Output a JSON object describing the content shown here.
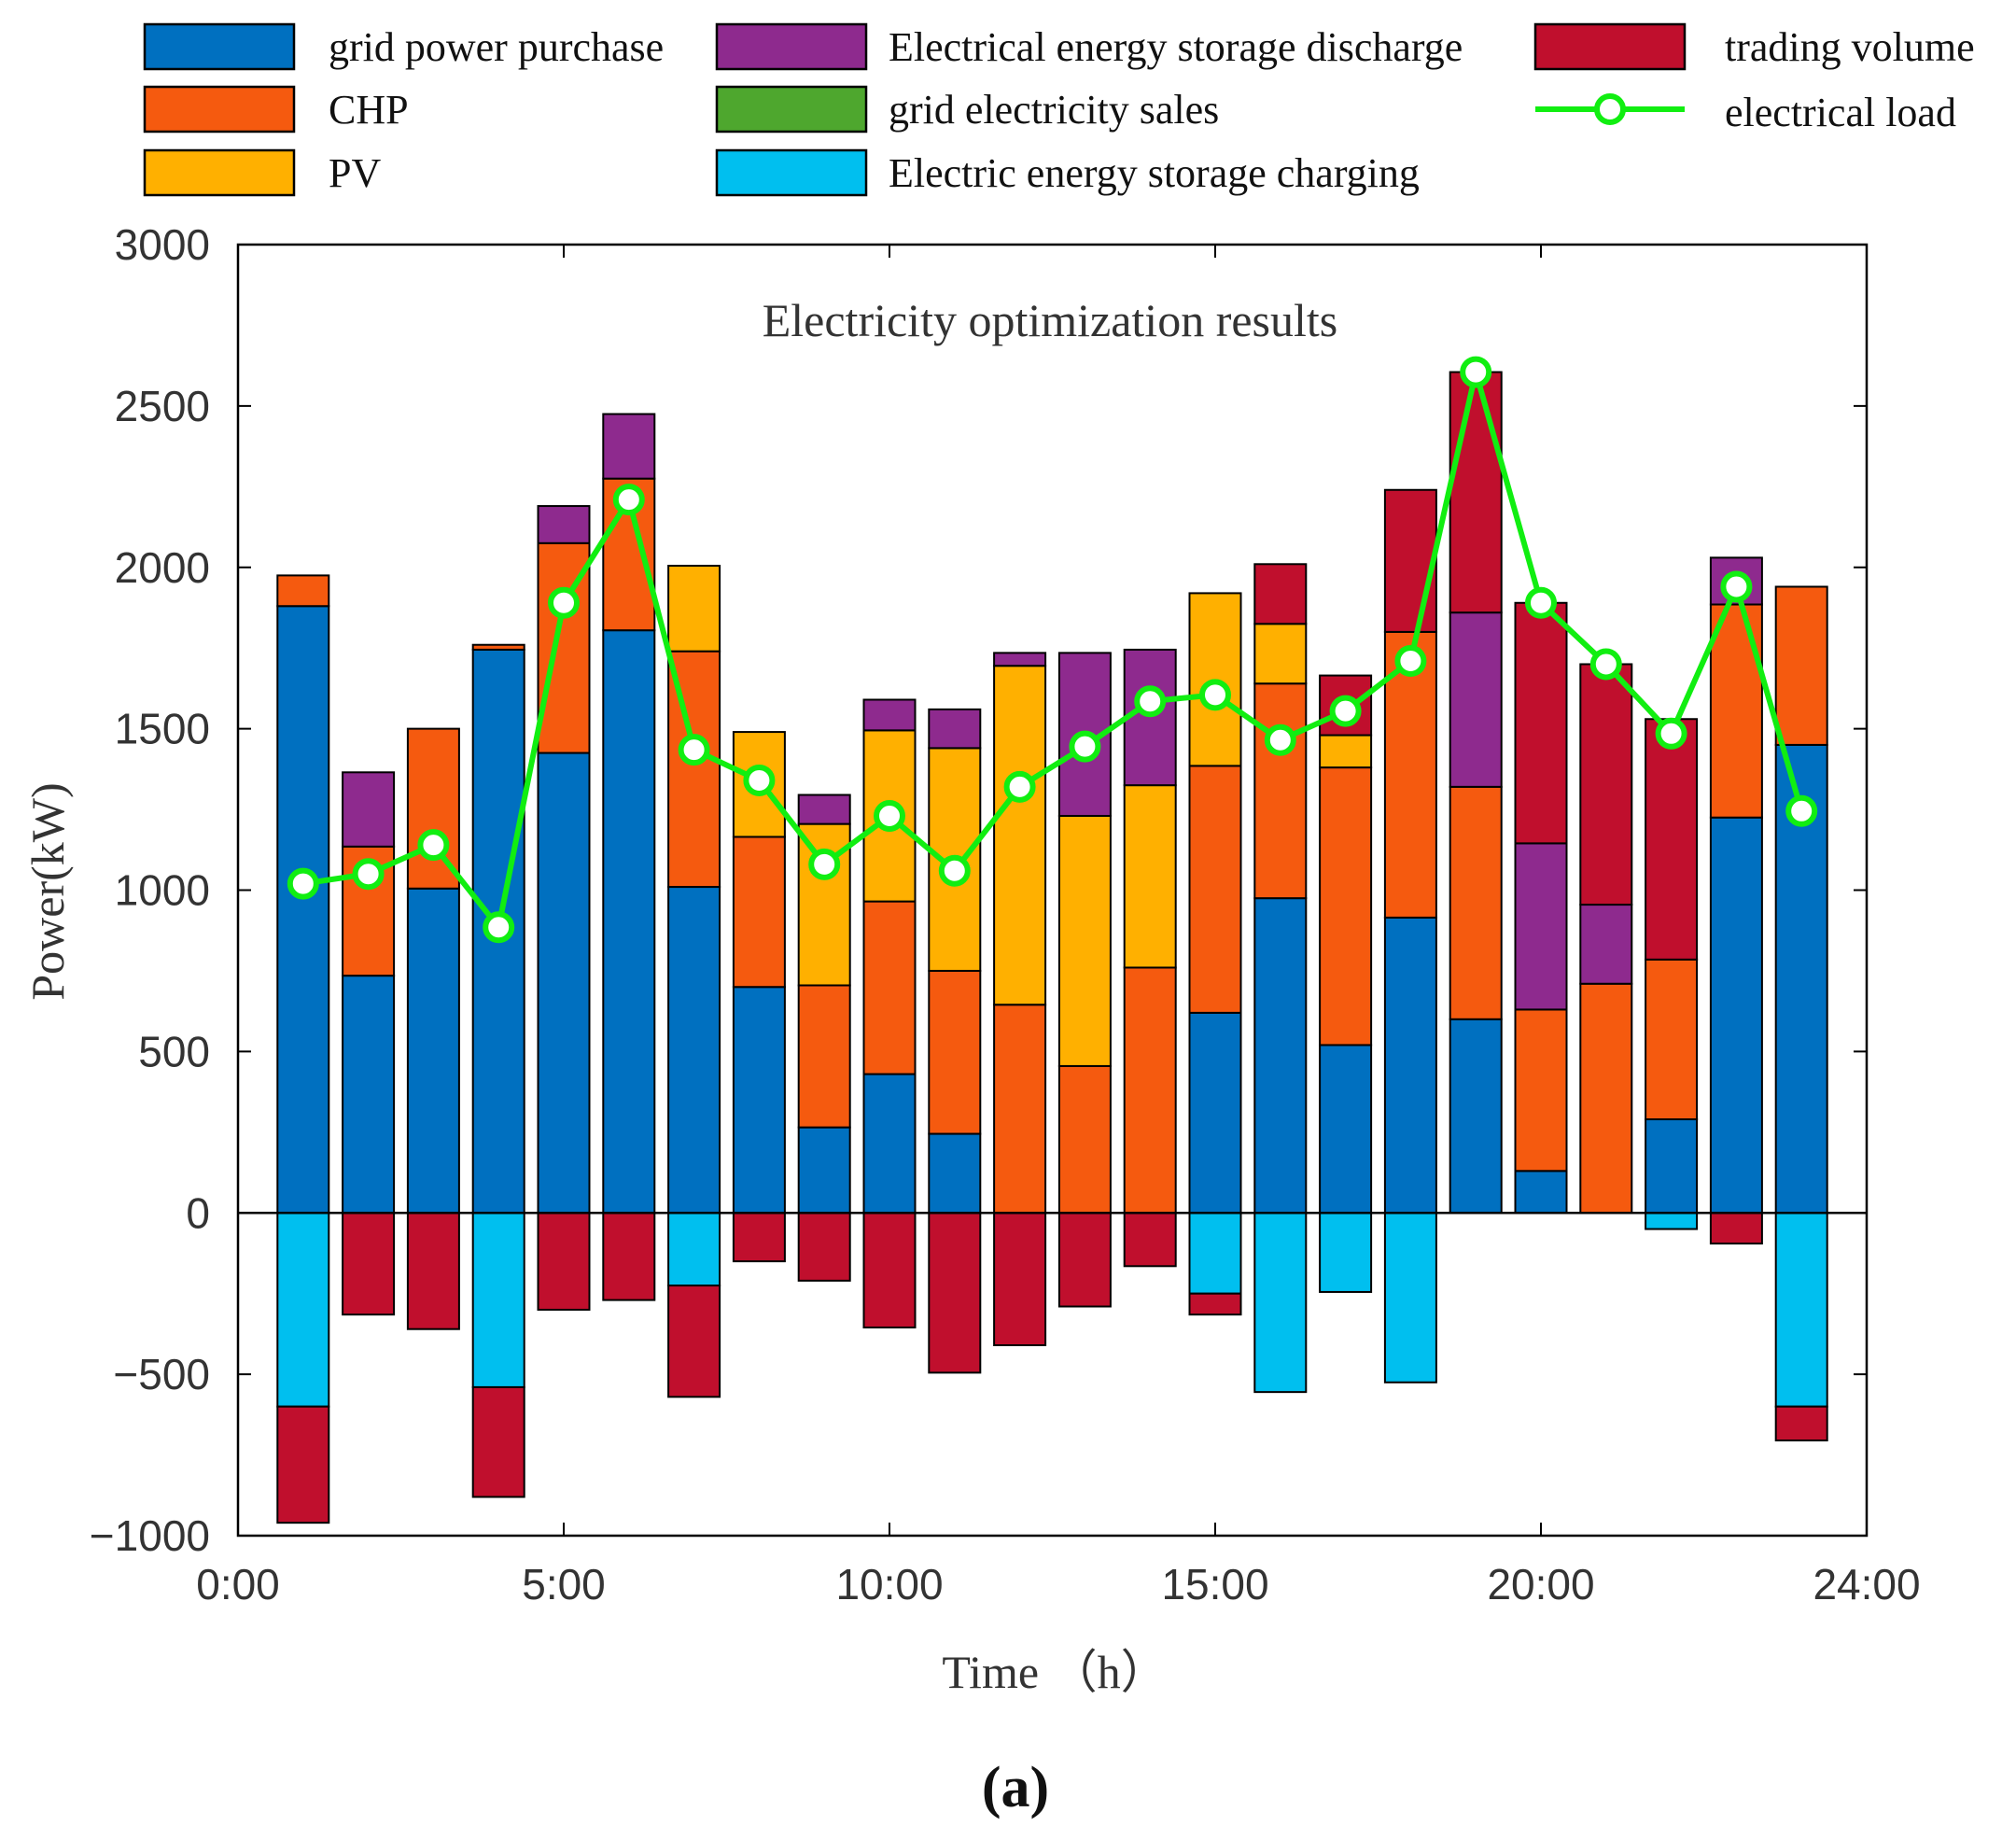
{
  "chart_data": {
    "type": "bar",
    "stacked": true,
    "title": "Electricity optimization results",
    "xlabel": "Time （h）",
    "ylabel": "Power(kW)",
    "panel_label": "(a)",
    "ylim": [
      -1000,
      3000
    ],
    "yticks": [
      -1000,
      -500,
      0,
      500,
      1000,
      1500,
      2000,
      2500,
      3000
    ],
    "ytick_labels": [
      "−1000",
      "−500",
      "0",
      "500",
      "1000",
      "1500",
      "2000",
      "2500",
      "3000"
    ],
    "xlim": [
      0,
      25.0
    ],
    "xticks": [
      0,
      5,
      10,
      15,
      20,
      25
    ],
    "xtick_labels": [
      "0:00",
      "5:00",
      "10:00",
      "15:00",
      "20:00",
      "24:00"
    ],
    "x": [
      1,
      2,
      3,
      4,
      5,
      6,
      7,
      8,
      9,
      10,
      11,
      12,
      13,
      14,
      15,
      16,
      17,
      18,
      19,
      20,
      21,
      22,
      23,
      24
    ],
    "grid": false,
    "legend_position": "top",
    "series": [
      {
        "name": "grid power purchase",
        "color": "#0070C0",
        "legend_col": 0,
        "legend_row": 0,
        "values": [
          1880,
          735,
          1005,
          1745,
          1425,
          1805,
          1010,
          700,
          265,
          430,
          245,
          0,
          0,
          0,
          620,
          975,
          520,
          915,
          600,
          130,
          0,
          290,
          1225,
          1450
        ]
      },
      {
        "name": "CHP",
        "color": "#F55A0F",
        "legend_col": 0,
        "legend_row": 1,
        "values": [
          95,
          400,
          495,
          15,
          650,
          470,
          730,
          465,
          440,
          535,
          505,
          645,
          455,
          760,
          765,
          665,
          860,
          885,
          720,
          500,
          710,
          495,
          660,
          490
        ]
      },
      {
        "name": "PV",
        "color": "#FFB000",
        "legend_col": 0,
        "legend_row": 2,
        "values": [
          0,
          0,
          0,
          0,
          0,
          0,
          265,
          325,
          500,
          530,
          690,
          1050,
          775,
          565,
          535,
          185,
          100,
          0,
          0,
          0,
          0,
          0,
          0,
          0
        ]
      },
      {
        "name": "Electrical energy storage discharge",
        "color": "#8E2A8E",
        "legend_col": 1,
        "legend_row": 0,
        "values": [
          0,
          230,
          0,
          0,
          115,
          200,
          0,
          0,
          90,
          95,
          120,
          40,
          505,
          420,
          0,
          0,
          0,
          0,
          540,
          515,
          245,
          0,
          145,
          0
        ]
      },
      {
        "name": "grid electricity sales",
        "color": "#4EA72E",
        "legend_col": 1,
        "legend_row": 1,
        "values": [
          0,
          0,
          0,
          0,
          0,
          0,
          0,
          0,
          0,
          0,
          0,
          0,
          0,
          0,
          0,
          0,
          0,
          0,
          0,
          0,
          0,
          0,
          0,
          0
        ]
      },
      {
        "name": "Electric energy storage charging",
        "color": "#00BFEF",
        "legend_col": 1,
        "legend_row": 2,
        "values": [
          -600,
          0,
          0,
          -540,
          0,
          0,
          -225,
          0,
          0,
          0,
          0,
          0,
          0,
          0,
          -250,
          -555,
          -245,
          -525,
          0,
          0,
          0,
          -50,
          0,
          -600
        ]
      },
      {
        "name": "trading volume",
        "color": "#C00F2D",
        "legend_col": 2,
        "legend_row": 0,
        "values_positive": [
          0,
          0,
          0,
          0,
          0,
          0,
          0,
          0,
          0,
          0,
          0,
          0,
          0,
          0,
          0,
          185,
          185,
          440,
          745,
          745,
          745,
          745,
          0,
          0
        ],
        "values_negative": [
          -360,
          -315,
          -360,
          -340,
          -300,
          -270,
          -345,
          -150,
          -210,
          -355,
          -495,
          -410,
          -290,
          -165,
          -65,
          0,
          0,
          0,
          0,
          0,
          0,
          0,
          -95,
          -105
        ]
      }
    ],
    "line": {
      "name": "electrical load",
      "color": "#11EE11",
      "marker": "circle",
      "legend_col": 2,
      "legend_row": 1,
      "values": [
        1020,
        1050,
        1140,
        885,
        1890,
        2210,
        1435,
        1340,
        1080,
        1230,
        1060,
        1320,
        1445,
        1585,
        1605,
        1465,
        1555,
        1710,
        2605,
        1890,
        1700,
        1485,
        1940,
        1245
      ]
    },
    "colors": {
      "axis": "#000000",
      "text": "#333333",
      "bar_edge": "#000000"
    }
  }
}
